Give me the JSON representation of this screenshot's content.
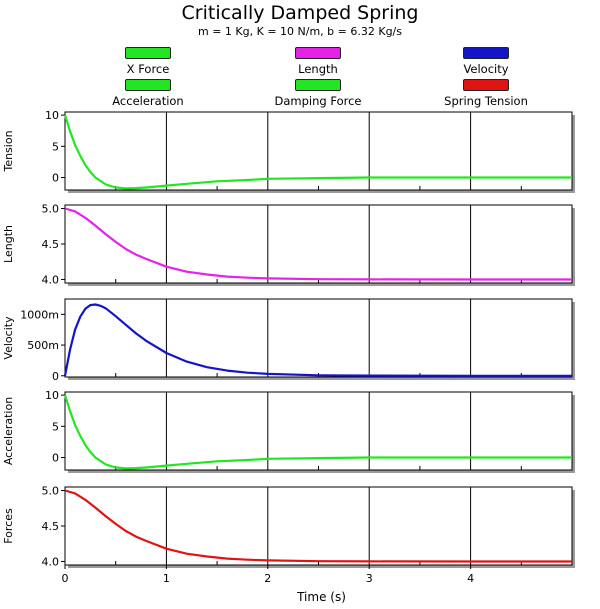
{
  "title": "Critically Damped Spring",
  "subtitle": "m = 1 Kg, K = 10 N/m, b = 6.32 Kg/s",
  "legend": [
    {
      "label": "X Force",
      "color": "#22e622"
    },
    {
      "label": "Length",
      "color": "#e622e6"
    },
    {
      "label": "Velocity",
      "color": "#1414c8"
    },
    {
      "label": "Acceleration",
      "color": "#22e622"
    },
    {
      "label": "Damping Force",
      "color": "#22e622"
    },
    {
      "label": "Spring Tension",
      "color": "#e01414"
    }
  ],
  "chart_data": {
    "type": "line",
    "xlabel": "Time (s)",
    "xlim": [
      0,
      5
    ],
    "x_ticks": [
      "0",
      "1",
      "2",
      "3",
      "4"
    ],
    "x_tick_values": [
      0,
      1,
      2,
      3,
      4
    ],
    "grid": true,
    "panels": [
      {
        "ylabel": "Tension",
        "ylim": [
          -2,
          10.5
        ],
        "y_ticks": [
          "10",
          "5",
          "0"
        ],
        "y_tick_values": [
          10,
          5,
          0
        ],
        "color": "#22e622",
        "x": [
          0,
          0.05,
          0.1,
          0.15,
          0.2,
          0.25,
          0.3,
          0.4,
          0.5,
          0.6,
          0.7,
          0.8,
          1.0,
          1.2,
          1.5,
          1.8,
          2.0,
          2.5,
          3.0,
          4.0,
          5.0
        ],
        "y": [
          10,
          7.4,
          5.2,
          3.5,
          2.0,
          0.9,
          0.0,
          -1.1,
          -1.6,
          -1.74,
          -1.7,
          -1.6,
          -1.3,
          -1.0,
          -0.6,
          -0.4,
          -0.2,
          -0.1,
          0,
          0,
          0
        ]
      },
      {
        "ylabel": "Length",
        "ylim": [
          3.95,
          5.05
        ],
        "y_ticks": [
          "5.0",
          "4.5",
          "4.0"
        ],
        "y_tick_values": [
          5.0,
          4.5,
          4.0
        ],
        "color": "#e622e6",
        "x": [
          0,
          0.1,
          0.2,
          0.3,
          0.4,
          0.5,
          0.6,
          0.7,
          0.8,
          1.0,
          1.2,
          1.4,
          1.6,
          1.8,
          2.0,
          2.5,
          3.0,
          4.0,
          5.0
        ],
        "y": [
          5.0,
          4.96,
          4.87,
          4.76,
          4.64,
          4.53,
          4.43,
          4.35,
          4.29,
          4.18,
          4.11,
          4.07,
          4.04,
          4.025,
          4.015,
          4.004,
          4.001,
          4.0,
          4.0
        ]
      },
      {
        "ylabel": "Velocity",
        "ylim": [
          -20,
          1250
        ],
        "y_ticks": [
          "1000m",
          "500m",
          "0"
        ],
        "y_tick_values": [
          1000,
          500,
          0
        ],
        "color": "#1414c8",
        "x": [
          0,
          0.05,
          0.1,
          0.15,
          0.2,
          0.25,
          0.3,
          0.35,
          0.4,
          0.5,
          0.6,
          0.7,
          0.8,
          1.0,
          1.2,
          1.4,
          1.6,
          1.8,
          2.0,
          2.5,
          3.0,
          4.0,
          5.0
        ],
        "y": [
          0,
          430,
          750,
          960,
          1090,
          1150,
          1160,
          1140,
          1100,
          970,
          830,
          690,
          570,
          370,
          230,
          140,
          85,
          50,
          30,
          8,
          2,
          0,
          0
        ]
      },
      {
        "ylabel": "Acceleration",
        "ylim": [
          -2,
          10.5
        ],
        "y_ticks": [
          "10",
          "5",
          "0"
        ],
        "y_tick_values": [
          10,
          5,
          0
        ],
        "color": "#22e622",
        "x": [
          0,
          0.05,
          0.1,
          0.15,
          0.2,
          0.25,
          0.3,
          0.4,
          0.5,
          0.6,
          0.7,
          0.8,
          1.0,
          1.2,
          1.5,
          1.8,
          2.0,
          2.5,
          3.0,
          4.0,
          5.0
        ],
        "y": [
          10,
          7.4,
          5.2,
          3.5,
          2.0,
          0.9,
          0.0,
          -1.1,
          -1.6,
          -1.74,
          -1.7,
          -1.6,
          -1.3,
          -1.0,
          -0.6,
          -0.4,
          -0.2,
          -0.1,
          0,
          0,
          0
        ]
      },
      {
        "ylabel": "Forces",
        "ylim": [
          3.95,
          5.05
        ],
        "y_ticks": [
          "5.0",
          "4.5",
          "4.0"
        ],
        "y_tick_values": [
          5.0,
          4.5,
          4.0
        ],
        "color": "#e01414",
        "x": [
          0,
          0.1,
          0.2,
          0.3,
          0.4,
          0.5,
          0.6,
          0.7,
          0.8,
          1.0,
          1.2,
          1.4,
          1.6,
          1.8,
          2.0,
          2.5,
          3.0,
          4.0,
          5.0
        ],
        "y": [
          5.0,
          4.96,
          4.87,
          4.76,
          4.64,
          4.53,
          4.43,
          4.35,
          4.29,
          4.18,
          4.11,
          4.07,
          4.04,
          4.025,
          4.015,
          4.004,
          4.001,
          4.0,
          4.0
        ]
      }
    ]
  }
}
